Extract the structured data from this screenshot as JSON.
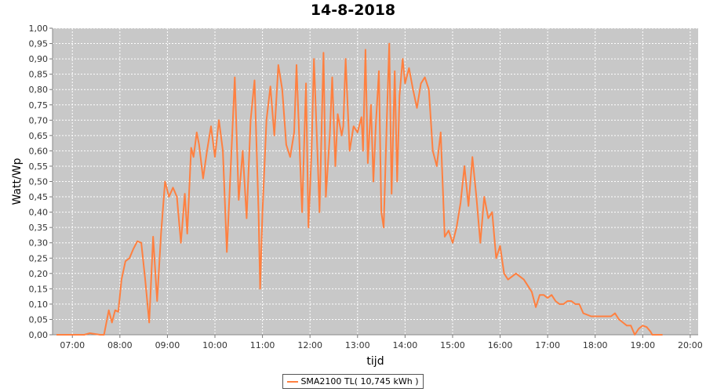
{
  "chart_data": {
    "type": "line",
    "title": "14-8-2018",
    "xlabel": "tijd",
    "ylabel": "Watt/Wp",
    "x_ticks": [
      "07:00",
      "08:00",
      "09:00",
      "10:00",
      "11:00",
      "12:00",
      "13:00",
      "14:00",
      "15:00",
      "16:00",
      "17:00",
      "18:00",
      "19:00",
      "20:00"
    ],
    "y_ticks": [
      "0,00",
      "0,05",
      "0,10",
      "0,15",
      "0,20",
      "0,25",
      "0,30",
      "0,35",
      "0,40",
      "0,45",
      "0,50",
      "0,55",
      "0,60",
      "0,65",
      "0,70",
      "0,75",
      "0,80",
      "0,85",
      "0,90",
      "0,95",
      "1,00"
    ],
    "xlim": [
      "06:35",
      "20:10"
    ],
    "ylim": [
      0,
      1.0
    ],
    "grid": true,
    "plot_background": "#c8c8c8",
    "legend_position": "bottom-center",
    "series": [
      {
        "name": "SMA2100 TL( 10,745 kWh )",
        "color": "#ff8040",
        "points": [
          [
            "06:40",
            0.0
          ],
          [
            "07:00",
            0.0
          ],
          [
            "07:15",
            0.0
          ],
          [
            "07:22",
            0.005
          ],
          [
            "07:35",
            0.0
          ],
          [
            "07:40",
            0.0
          ],
          [
            "07:46",
            0.08
          ],
          [
            "07:50",
            0.04
          ],
          [
            "07:54",
            0.08
          ],
          [
            "07:58",
            0.075
          ],
          [
            "08:02",
            0.18
          ],
          [
            "08:07",
            0.24
          ],
          [
            "08:12",
            0.25
          ],
          [
            "08:17",
            0.28
          ],
          [
            "08:22",
            0.305
          ],
          [
            "08:27",
            0.3
          ],
          [
            "08:32",
            0.18
          ],
          [
            "08:37",
            0.04
          ],
          [
            "08:42",
            0.32
          ],
          [
            "08:47",
            0.11
          ],
          [
            "08:52",
            0.33
          ],
          [
            "08:57",
            0.5
          ],
          [
            "09:02",
            0.45
          ],
          [
            "09:07",
            0.48
          ],
          [
            "09:12",
            0.45
          ],
          [
            "09:17",
            0.3
          ],
          [
            "09:22",
            0.46
          ],
          [
            "09:25",
            0.33
          ],
          [
            "09:30",
            0.61
          ],
          [
            "09:33",
            0.58
          ],
          [
            "09:37",
            0.66
          ],
          [
            "09:40",
            0.62
          ],
          [
            "09:45",
            0.51
          ],
          [
            "09:50",
            0.6
          ],
          [
            "09:55",
            0.68
          ],
          [
            "10:00",
            0.58
          ],
          [
            "10:05",
            0.7
          ],
          [
            "10:10",
            0.6
          ],
          [
            "10:15",
            0.27
          ],
          [
            "10:20",
            0.55
          ],
          [
            "10:25",
            0.84
          ],
          [
            "10:30",
            0.44
          ],
          [
            "10:35",
            0.6
          ],
          [
            "10:40",
            0.38
          ],
          [
            "10:45",
            0.7
          ],
          [
            "10:50",
            0.83
          ],
          [
            "10:55",
            0.4
          ],
          [
            "10:57",
            0.15
          ],
          [
            "11:00",
            0.4
          ],
          [
            "11:05",
            0.7
          ],
          [
            "11:10",
            0.81
          ],
          [
            "11:15",
            0.65
          ],
          [
            "11:20",
            0.88
          ],
          [
            "11:25",
            0.8
          ],
          [
            "11:30",
            0.62
          ],
          [
            "11:35",
            0.58
          ],
          [
            "11:40",
            0.66
          ],
          [
            "11:43",
            0.88
          ],
          [
            "11:47",
            0.6
          ],
          [
            "11:50",
            0.4
          ],
          [
            "11:55",
            0.82
          ],
          [
            "11:58",
            0.35
          ],
          [
            "12:02",
            0.6
          ],
          [
            "12:05",
            0.9
          ],
          [
            "12:10",
            0.55
          ],
          [
            "12:12",
            0.4
          ],
          [
            "12:17",
            0.92
          ],
          [
            "12:20",
            0.45
          ],
          [
            "12:25",
            0.65
          ],
          [
            "12:28",
            0.84
          ],
          [
            "12:32",
            0.55
          ],
          [
            "12:35",
            0.72
          ],
          [
            "12:40",
            0.65
          ],
          [
            "12:42",
            0.68
          ],
          [
            "12:45",
            0.9
          ],
          [
            "12:50",
            0.6
          ],
          [
            "12:55",
            0.68
          ],
          [
            "13:00",
            0.66
          ],
          [
            "13:05",
            0.71
          ],
          [
            "13:07",
            0.6
          ],
          [
            "13:10",
            0.93
          ],
          [
            "13:13",
            0.56
          ],
          [
            "13:17",
            0.75
          ],
          [
            "13:20",
            0.5
          ],
          [
            "13:23",
            0.68
          ],
          [
            "13:27",
            0.86
          ],
          [
            "13:30",
            0.4
          ],
          [
            "13:33",
            0.35
          ],
          [
            "13:37",
            0.7
          ],
          [
            "13:40",
            0.95
          ],
          [
            "13:43",
            0.46
          ],
          [
            "13:47",
            0.86
          ],
          [
            "13:50",
            0.5
          ],
          [
            "13:53",
            0.78
          ],
          [
            "13:57",
            0.9
          ],
          [
            "14:00",
            0.82
          ],
          [
            "14:05",
            0.87
          ],
          [
            "14:10",
            0.8
          ],
          [
            "14:15",
            0.74
          ],
          [
            "14:20",
            0.82
          ],
          [
            "14:25",
            0.84
          ],
          [
            "14:30",
            0.8
          ],
          [
            "14:35",
            0.6
          ],
          [
            "14:40",
            0.55
          ],
          [
            "14:45",
            0.66
          ],
          [
            "14:50",
            0.32
          ],
          [
            "14:55",
            0.34
          ],
          [
            "15:00",
            0.3
          ],
          [
            "15:05",
            0.35
          ],
          [
            "15:10",
            0.43
          ],
          [
            "15:15",
            0.55
          ],
          [
            "15:20",
            0.42
          ],
          [
            "15:25",
            0.58
          ],
          [
            "15:30",
            0.45
          ],
          [
            "15:35",
            0.3
          ],
          [
            "15:40",
            0.45
          ],
          [
            "15:45",
            0.38
          ],
          [
            "15:50",
            0.4
          ],
          [
            "15:55",
            0.25
          ],
          [
            "16:00",
            0.29
          ],
          [
            "16:05",
            0.2
          ],
          [
            "16:10",
            0.18
          ],
          [
            "16:15",
            0.19
          ],
          [
            "16:20",
            0.2
          ],
          [
            "16:25",
            0.19
          ],
          [
            "16:30",
            0.18
          ],
          [
            "16:35",
            0.16
          ],
          [
            "16:40",
            0.14
          ],
          [
            "16:45",
            0.09
          ],
          [
            "16:50",
            0.13
          ],
          [
            "16:55",
            0.13
          ],
          [
            "17:00",
            0.12
          ],
          [
            "17:05",
            0.13
          ],
          [
            "17:10",
            0.11
          ],
          [
            "17:15",
            0.1
          ],
          [
            "17:20",
            0.1
          ],
          [
            "17:25",
            0.11
          ],
          [
            "17:30",
            0.11
          ],
          [
            "17:35",
            0.1
          ],
          [
            "17:40",
            0.1
          ],
          [
            "17:45",
            0.07
          ],
          [
            "17:55",
            0.06
          ],
          [
            "18:05",
            0.06
          ],
          [
            "18:15",
            0.06
          ],
          [
            "18:20",
            0.06
          ],
          [
            "18:25",
            0.07
          ],
          [
            "18:30",
            0.05
          ],
          [
            "18:35",
            0.04
          ],
          [
            "18:40",
            0.03
          ],
          [
            "18:45",
            0.03
          ],
          [
            "18:50",
            0.0
          ],
          [
            "18:55",
            0.02
          ],
          [
            "19:00",
            0.03
          ],
          [
            "19:05",
            0.025
          ],
          [
            "19:10",
            0.01
          ],
          [
            "19:12",
            0.0
          ],
          [
            "19:20",
            0.0
          ],
          [
            "19:25",
            0.0
          ]
        ]
      }
    ]
  }
}
